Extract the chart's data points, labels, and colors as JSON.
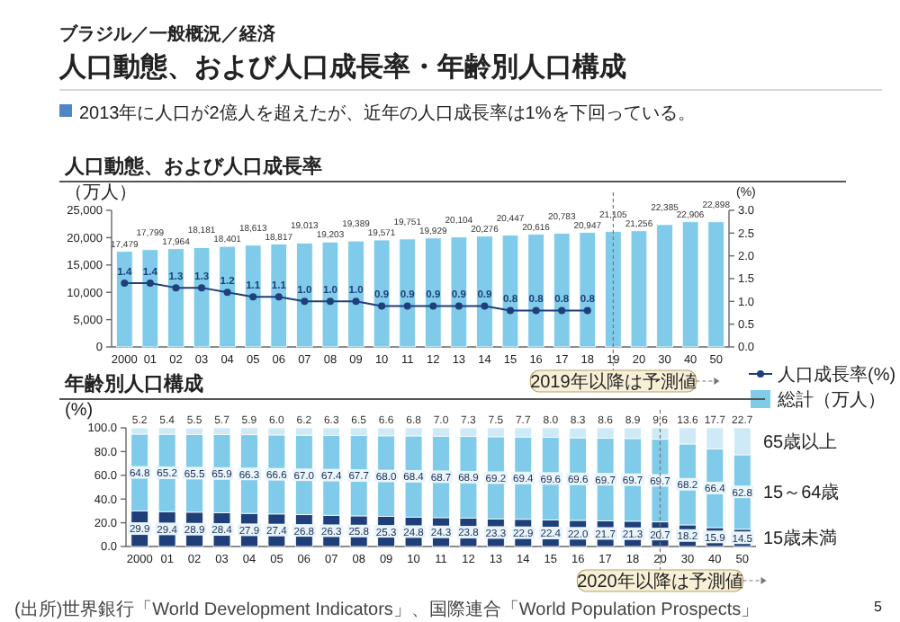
{
  "chart_data": [
    {
      "type": "other",
      "title": "人口動態、および人口成長率・年齢別人口構成",
      "subtitle": "2013年に人口が2億人を超えたが、近年の人口成長率は1%を下回っている。",
      "annotations": [
        "ブラジル／一般概況／経済",
        "5"
      ]
    },
    {
      "type": "bar",
      "title": "人口動態、および人口成長率",
      "ylabel": "（万人）",
      "y2label": "(%)",
      "categories": [
        "2000",
        "01",
        "02",
        "03",
        "04",
        "05",
        "06",
        "07",
        "08",
        "09",
        "10",
        "11",
        "12",
        "13",
        "14",
        "15",
        "16",
        "17",
        "18",
        "19",
        "20",
        "30",
        "40",
        "50"
      ],
      "series": [
        {
          "name": "総計（万人）",
          "type": "bar",
          "color": "#7fcbe9",
          "values": [
            17479,
            17799,
            17964,
            18181,
            18401,
            18613,
            18817,
            19013,
            19203,
            19389,
            19571,
            19751,
            19929,
            20104,
            20276,
            20447,
            20616,
            20783,
            20947,
            21105,
            21256,
            22385,
            22906,
            22898
          ],
          "value_labels": [
            "17,479",
            "17,799",
            "17,964",
            "18,181",
            "18,401",
            "18,613",
            "18,817",
            "19,013",
            "19,203",
            "19,389",
            "19,571",
            "19,751",
            "19,929",
            "20,104",
            "20,276",
            "20,447",
            "20,616",
            "20,783",
            "20,947",
            "21,105",
            "21,256",
            "22,385",
            "22,906",
            "22,898"
          ]
        },
        {
          "name": "人口成長率(%)",
          "type": "line",
          "axis": "y2",
          "color": "#1f3f7a",
          "values": [
            1.4,
            1.4,
            1.3,
            1.3,
            1.2,
            1.1,
            1.1,
            1.0,
            1.0,
            1.0,
            0.9,
            0.9,
            0.9,
            0.9,
            0.9,
            0.8,
            0.8,
            0.8,
            0.8,
            null,
            null,
            null,
            null,
            null
          ],
          "value_labels": [
            "1.4",
            "1.4",
            "1.3",
            "1.3",
            "1.2",
            "1.1",
            "1.1",
            "1.0",
            "1.0",
            "1.0",
            "0.9",
            "0.9",
            "0.9",
            "0.9",
            "0.9",
            "0.8",
            "0.8",
            "0.8",
            "0.8",
            null,
            null,
            null,
            null,
            null
          ]
        }
      ],
      "ylim": [
        0,
        25000
      ],
      "yticks": [
        {
          "value": 0,
          "label": "0"
        },
        {
          "value": 5000,
          "label": "5,000"
        },
        {
          "value": 10000,
          "label": "10,000"
        },
        {
          "value": 15000,
          "label": "15,000"
        },
        {
          "value": 20000,
          "label": "20,000"
        },
        {
          "value": 25000,
          "label": "25,000"
        }
      ],
      "y2lim": [
        0,
        3
      ],
      "y2ticks": [
        {
          "value": 0,
          "label": "0.0"
        },
        {
          "value": 0.5,
          "label": "0.5"
        },
        {
          "value": 1,
          "label": "1.0"
        },
        {
          "value": 1.5,
          "label": "1.5"
        },
        {
          "value": 2,
          "label": "2.0"
        },
        {
          "value": 2.5,
          "label": "2.5"
        },
        {
          "value": 3,
          "label": "3.0"
        }
      ],
      "marker": "circle",
      "legend": "bottom right",
      "ref_lines": [
        {
          "axis": "x",
          "value": "19",
          "label": "2019年以降は予測値",
          "line_style": "dashed"
        }
      ]
    },
    {
      "type": "bar",
      "stacked": true,
      "title": "年齢別人口構成",
      "ylabel": "(%)",
      "categories": [
        "2000",
        "01",
        "02",
        "03",
        "04",
        "05",
        "06",
        "07",
        "08",
        "09",
        "10",
        "11",
        "12",
        "13",
        "14",
        "15",
        "16",
        "17",
        "18",
        "20",
        "30",
        "40",
        "50"
      ],
      "series": [
        {
          "name": "15歳未満",
          "color": "#1f3f7a",
          "values": [
            29.9,
            29.4,
            28.9,
            28.4,
            27.9,
            27.4,
            26.8,
            26.3,
            25.8,
            25.3,
            24.8,
            24.3,
            23.8,
            23.3,
            22.9,
            22.4,
            22.0,
            21.7,
            21.3,
            20.7,
            18.2,
            15.9,
            14.5
          ],
          "value_labels": [
            "29.9",
            "29.4",
            "28.9",
            "28.4",
            "27.9",
            "27.4",
            "26.8",
            "26.3",
            "25.8",
            "25.3",
            "24.8",
            "24.3",
            "23.8",
            "23.3",
            "22.9",
            "22.4",
            "22.0",
            "21.7",
            "21.3",
            "20.7",
            "18.2",
            "15.9",
            "14.5"
          ]
        },
        {
          "name": "15～64歳",
          "color": "#7fcbe9",
          "values": [
            64.8,
            65.2,
            65.5,
            65.9,
            66.3,
            66.6,
            67.0,
            67.4,
            67.7,
            68.0,
            68.4,
            68.7,
            68.9,
            69.2,
            69.4,
            69.6,
            69.6,
            69.7,
            69.7,
            69.7,
            68.2,
            66.4,
            62.8
          ],
          "value_labels": [
            "64.8",
            "65.2",
            "65.5",
            "65.9",
            "66.3",
            "66.6",
            "67.0",
            "67.4",
            "67.7",
            "68.0",
            "68.4",
            "68.7",
            "68.9",
            "69.2",
            "69.4",
            "69.6",
            "69.6",
            "69.7",
            "69.7",
            "69.7",
            "68.2",
            "66.4",
            "62.8"
          ]
        },
        {
          "name": "65歳以上",
          "color": "#cdeaf6",
          "values": [
            5.2,
            5.4,
            5.5,
            5.7,
            5.9,
            6.0,
            6.2,
            6.3,
            6.5,
            6.6,
            6.8,
            7.0,
            7.3,
            7.5,
            7.7,
            8.0,
            8.3,
            8.6,
            8.9,
            9.6,
            13.6,
            17.7,
            22.7
          ],
          "value_labels": [
            "5.2",
            "5.4",
            "5.5",
            "5.7",
            "5.9",
            "6.0",
            "6.2",
            "6.3",
            "6.5",
            "6.6",
            "6.8",
            "7.0",
            "7.3",
            "7.5",
            "7.7",
            "8.0",
            "8.3",
            "8.6",
            "8.9",
            "9.6",
            "13.6",
            "17.7",
            "22.7"
          ]
        }
      ],
      "ylim": [
        0,
        100
      ],
      "yticks": [
        {
          "value": 0,
          "label": "0.0"
        },
        {
          "value": 20,
          "label": "20.0"
        },
        {
          "value": 40,
          "label": "40.0"
        },
        {
          "value": 60,
          "label": "60.0"
        },
        {
          "value": 80,
          "label": "80.0"
        },
        {
          "value": 100,
          "label": "100.0"
        }
      ],
      "ref_lines": [
        {
          "axis": "x",
          "value": "20",
          "label": "2020年以降は予測値",
          "line_style": "dashed"
        }
      ],
      "annotations": [
        "(出所)世界銀行「World Development Indicators」、国際連合「World Population Prospects」"
      ]
    }
  ]
}
